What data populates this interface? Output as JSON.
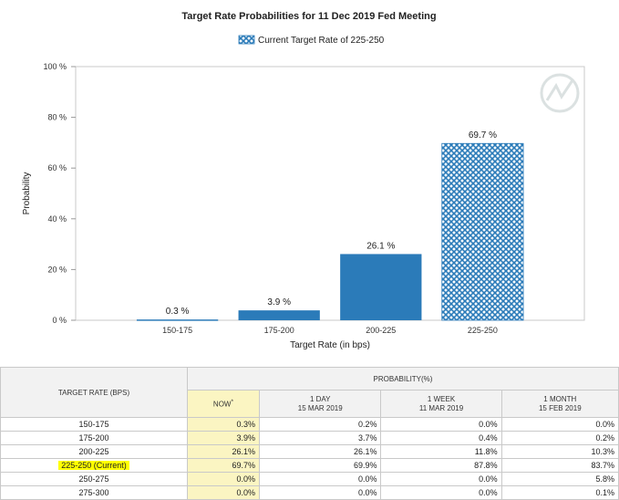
{
  "chart_data": {
    "type": "bar",
    "title": "Target Rate Probabilities for 11 Dec 2019 Fed Meeting",
    "legend": "Current Target Rate of 225-250",
    "legend_position": "top-center",
    "xlabel": "Target Rate (in bps)",
    "ylabel": "Probability",
    "categories": [
      "150-175",
      "175-200",
      "200-225",
      "225-250"
    ],
    "values": [
      0.3,
      3.9,
      26.1,
      69.7
    ],
    "value_labels": [
      "0.3 %",
      "3.9 %",
      "26.1 %",
      "69.7 %"
    ],
    "yticks": [
      0,
      20,
      40,
      60,
      80,
      100
    ],
    "ytick_labels": [
      "0 %",
      "20 %",
      "40 %",
      "60 %",
      "80 %",
      "100 %"
    ],
    "ylim": [
      0,
      100
    ],
    "grid": false,
    "current_category": "225-250",
    "colors": {
      "bar": "#2b7bb9",
      "pattern": "#2b7bb9"
    }
  },
  "table": {
    "rate_header": "TARGET RATE (BPS)",
    "prob_header": "PROBABILITY(%)",
    "columns": [
      {
        "label": "NOW",
        "marker": "*",
        "sub": ""
      },
      {
        "label": "1 DAY",
        "sub": "15 MAR 2019"
      },
      {
        "label": "1 WEEK",
        "sub": "11 MAR 2019"
      },
      {
        "label": "1 MONTH",
        "sub": "15 FEB 2019"
      }
    ],
    "rows": [
      {
        "rate": "150-175",
        "now": "0.3%",
        "day": "0.2%",
        "week": "0.0%",
        "month": "0.0%"
      },
      {
        "rate": "175-200",
        "now": "3.9%",
        "day": "3.7%",
        "week": "0.4%",
        "month": "0.2%"
      },
      {
        "rate": "200-225",
        "now": "26.1%",
        "day": "26.1%",
        "week": "11.8%",
        "month": "10.3%"
      },
      {
        "rate": "225-250 (Current)",
        "now": "69.7%",
        "day": "69.9%",
        "week": "87.8%",
        "month": "83.7%"
      },
      {
        "rate": "250-275",
        "now": "0.0%",
        "day": "0.0%",
        "week": "0.0%",
        "month": "5.8%"
      },
      {
        "rate": "275-300",
        "now": "0.0%",
        "day": "0.0%",
        "week": "0.0%",
        "month": "0.1%"
      }
    ]
  }
}
